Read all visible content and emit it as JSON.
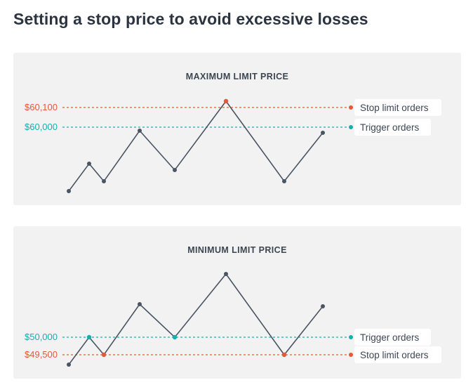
{
  "page": {
    "title": "Setting a stop price to avoid excessive losses"
  },
  "colors": {
    "stop": "#e4593a",
    "trigger": "#14b0ad",
    "line": "#4a5563",
    "panel_bg": "#f2f2f2"
  },
  "panels": [
    {
      "heading": "MAXIMUM LIMIT PRICE",
      "stop_price": "$60,100",
      "trigger_price": "$60,000",
      "stop_tag": "Stop limit orders",
      "trigger_tag": "Trigger orders"
    },
    {
      "heading": "MINIMUM LIMIT PRICE",
      "stop_price": "$49,500",
      "trigger_price": "$50,000",
      "stop_tag": "Stop limit orders",
      "trigger_tag": "Trigger orders"
    }
  ]
}
